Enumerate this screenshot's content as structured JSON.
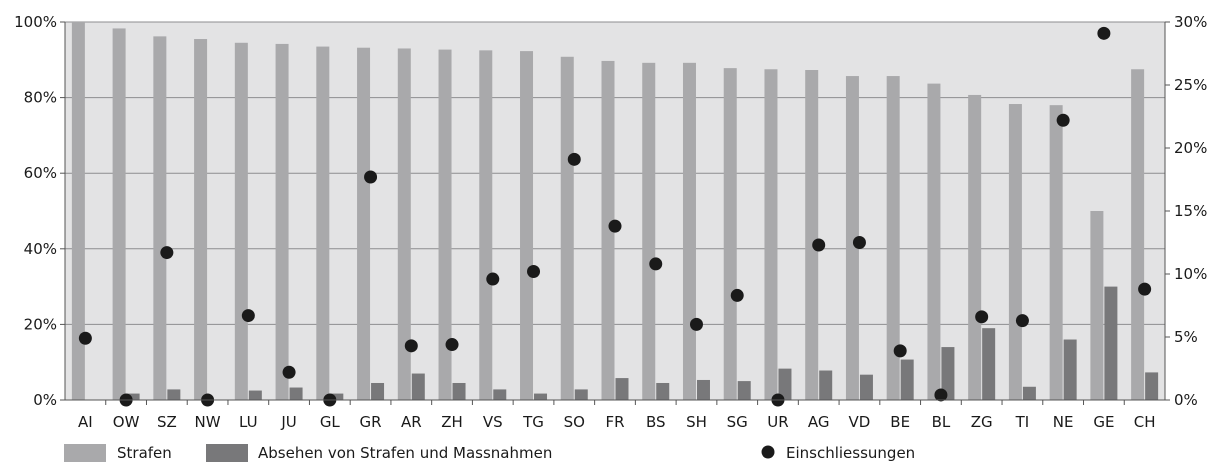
{
  "chart_data": {
    "type": "bar",
    "categories": [
      "AI",
      "OW",
      "SZ",
      "NW",
      "LU",
      "JU",
      "GL",
      "GR",
      "AR",
      "ZH",
      "VS",
      "TG",
      "SO",
      "FR",
      "BS",
      "SH",
      "SG",
      "UR",
      "AG",
      "VD",
      "BE",
      "BL",
      "ZG",
      "TI",
      "NE",
      "GE",
      "CH"
    ],
    "series": [
      {
        "name": "Strafen",
        "axis": "left",
        "kind": "bar",
        "color": "#a9a9ab",
        "values": [
          100,
          98.3,
          96.2,
          95.5,
          94.5,
          94.2,
          93.5,
          93.2,
          93.0,
          92.7,
          92.5,
          92.3,
          90.8,
          89.7,
          89.2,
          89.2,
          87.8,
          87.5,
          87.3,
          85.7,
          85.7,
          83.7,
          80.7,
          78.3,
          78.0,
          50.0,
          87.5
        ]
      },
      {
        "name": "Absehen von Strafen und Massnahmen",
        "axis": "left",
        "kind": "bar",
        "color": "#78787a",
        "values": [
          0,
          1.7,
          2.8,
          0,
          2.5,
          3.3,
          1.7,
          4.5,
          7.0,
          4.5,
          2.8,
          1.7,
          2.8,
          5.8,
          4.5,
          5.3,
          5.0,
          8.3,
          7.8,
          6.7,
          10.7,
          14.0,
          19.0,
          3.5,
          16.0,
          30.0,
          7.3
        ]
      },
      {
        "name": "Einschliessungen",
        "axis": "right",
        "kind": "dot",
        "color": "#1a1a1a",
        "values": [
          4.9,
          0,
          11.7,
          0,
          6.7,
          2.2,
          0,
          17.7,
          4.3,
          4.4,
          9.6,
          10.2,
          19.1,
          13.8,
          10.8,
          6.0,
          8.3,
          0,
          12.3,
          12.5,
          3.9,
          0.4,
          6.6,
          6.3,
          22.2,
          29.1,
          8.8
        ]
      }
    ],
    "y_left": {
      "min": 0,
      "max": 100,
      "ticks": [
        "0%",
        "20%",
        "40%",
        "60%",
        "80%",
        "100%"
      ]
    },
    "y_right": {
      "min": 0,
      "max": 30,
      "ticks": [
        "0%",
        "5%",
        "10%",
        "15%",
        "20%",
        "25%",
        "30%"
      ]
    },
    "grid": true,
    "legend_position": "bottom-left",
    "plot_background": "#e3e3e4"
  }
}
